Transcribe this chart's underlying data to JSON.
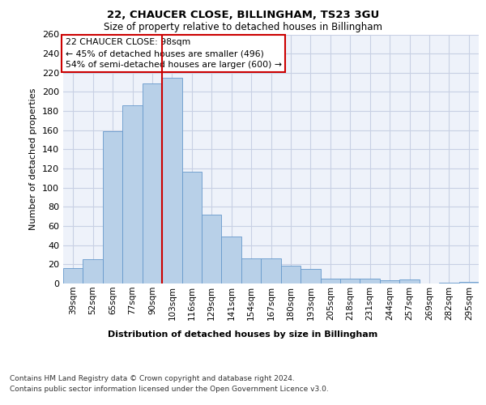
{
  "title1": "22, CHAUCER CLOSE, BILLINGHAM, TS23 3GU",
  "title2": "Size of property relative to detached houses in Billingham",
  "xlabel": "Distribution of detached houses by size in Billingham",
  "ylabel": "Number of detached properties",
  "categories": [
    "39sqm",
    "52sqm",
    "65sqm",
    "77sqm",
    "90sqm",
    "103sqm",
    "116sqm",
    "129sqm",
    "141sqm",
    "154sqm",
    "167sqm",
    "180sqm",
    "193sqm",
    "205sqm",
    "218sqm",
    "231sqm",
    "244sqm",
    "257sqm",
    "269sqm",
    "282sqm",
    "295sqm"
  ],
  "values": [
    16,
    25,
    159,
    186,
    209,
    215,
    117,
    72,
    49,
    26,
    26,
    19,
    15,
    5,
    5,
    5,
    3,
    4,
    0,
    1,
    2
  ],
  "bar_color": "#b8d0e8",
  "bar_edge_color": "#6699cc",
  "vline_color": "#cc0000",
  "annotation_text": "22 CHAUCER CLOSE: 98sqm\n← 45% of detached houses are smaller (496)\n54% of semi-detached houses are larger (600) →",
  "annotation_box_color": "#ffffff",
  "annotation_box_edge": "#cc0000",
  "ylim": [
    0,
    260
  ],
  "yticks": [
    0,
    20,
    40,
    60,
    80,
    100,
    120,
    140,
    160,
    180,
    200,
    220,
    240,
    260
  ],
  "footer1": "Contains HM Land Registry data © Crown copyright and database right 2024.",
  "footer2": "Contains public sector information licensed under the Open Government Licence v3.0.",
  "bg_color": "#eef2fa",
  "grid_color": "#c8d0e4"
}
